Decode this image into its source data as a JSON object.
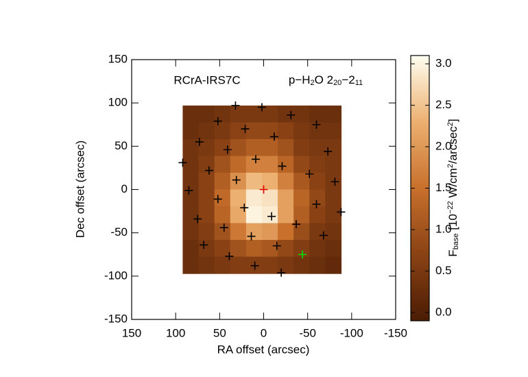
{
  "chart_data": {
    "type": "heatmap",
    "title": "RCrA-IRS7C",
    "transition": [
      {
        "text": "p−H"
      },
      {
        "text": "2",
        "shift": "sub"
      },
      {
        "text": "O 2"
      },
      {
        "text": "20",
        "shift": "sub"
      },
      {
        "text": "−2"
      },
      {
        "text": "11",
        "shift": "sub"
      }
    ],
    "x_label": "RA offset (arcsec)",
    "y_label": "Dec offset (arcsec)",
    "colorbar_label": [
      {
        "text": "F"
      },
      {
        "text": "base",
        "shift": "sub"
      },
      {
        "text": " [10"
      },
      {
        "text": "−22",
        "shift": "sup"
      },
      {
        "text": " W/cm"
      },
      {
        "text": "2",
        "shift": "sup"
      },
      {
        "text": "/arcsec"
      },
      {
        "text": "2",
        "shift": "sup"
      },
      {
        "text": "]"
      }
    ],
    "xlim": [
      150,
      -150
    ],
    "xticks": [
      150,
      100,
      50,
      0,
      -50,
      -100,
      -150
    ],
    "ylim": [
      -150,
      150
    ],
    "yticks": [
      -150,
      -100,
      -50,
      0,
      50,
      100,
      150
    ],
    "heatmap": {
      "extent_x": [
        92,
        -88
      ],
      "extent_y": [
        97,
        -97
      ],
      "z": [
        [
          0.3,
          0.3,
          0.4,
          0.5,
          0.5,
          0.5,
          0.4,
          0.4,
          0.3,
          0.3
        ],
        [
          0.3,
          0.4,
          0.5,
          0.7,
          0.8,
          0.8,
          0.7,
          0.5,
          0.4,
          0.4
        ],
        [
          0.4,
          0.5,
          0.7,
          1.0,
          1.2,
          1.2,
          1.0,
          0.6,
          0.5,
          0.5
        ],
        [
          0.4,
          0.6,
          1.0,
          1.4,
          1.7,
          1.7,
          1.3,
          0.8,
          0.6,
          0.5
        ],
        [
          0.4,
          0.7,
          1.2,
          1.9,
          2.4,
          2.3,
          1.7,
          1.1,
          0.7,
          0.5
        ],
        [
          0.4,
          0.7,
          1.4,
          2.3,
          2.9,
          2.8,
          2.1,
          1.3,
          0.8,
          0.5
        ],
        [
          0.4,
          0.7,
          1.3,
          2.2,
          3.0,
          2.9,
          2.1,
          1.2,
          0.7,
          0.5
        ],
        [
          0.4,
          0.6,
          1.0,
          1.6,
          2.1,
          2.0,
          1.5,
          0.9,
          0.5,
          0.4
        ],
        [
          0.3,
          0.5,
          0.7,
          1.0,
          1.2,
          1.1,
          0.8,
          0.6,
          0.4,
          0.3
        ],
        [
          0.3,
          0.4,
          0.5,
          0.6,
          0.6,
          0.6,
          0.5,
          0.4,
          0.3,
          0.2
        ]
      ]
    },
    "zlim": [
      -0.1,
      3.1
    ],
    "colormap": [
      "#4a1c04",
      "#8a4214",
      "#c8702c",
      "#ecb070",
      "#fffef0"
    ],
    "cticks": [
      {
        "value": 0,
        "label": "0.0"
      },
      {
        "value": 0.5,
        "label": "0.5"
      },
      {
        "value": 1,
        "label": "1.0"
      },
      {
        "value": 1.5,
        "label": "1.5"
      },
      {
        "value": 2,
        "label": "2.0"
      },
      {
        "value": 2.5,
        "label": "2.5"
      },
      {
        "value": 3,
        "label": "3.0"
      }
    ],
    "series": [
      {
        "color": "#000000",
        "x": [
          32,
          2,
          -31,
          52,
          -60,
          21,
          73,
          -12,
          41,
          -73,
          9,
          92,
          62,
          -21,
          -52,
          31,
          -81,
          85,
          52,
          -60,
          22,
          -88,
          75,
          -9,
          -37,
          45,
          14,
          -68,
          68,
          -15,
          39,
          10,
          -20
        ],
        "values": [
          97,
          95,
          86,
          79,
          75,
          70,
          55,
          61,
          46,
          44,
          35,
          31,
          22,
          27,
          18,
          11,
          9,
          -1,
          -11,
          -17,
          -21,
          -26,
          -34,
          -31,
          -40,
          -44,
          -54,
          -53,
          -64,
          -65,
          -77,
          -88,
          -96
        ]
      },
      {
        "color": "#e00000",
        "x": [
          0
        ],
        "values": [
          0
        ]
      },
      {
        "color": "#00e000",
        "x": [
          -44
        ],
        "values": [
          -75
        ]
      }
    ]
  }
}
